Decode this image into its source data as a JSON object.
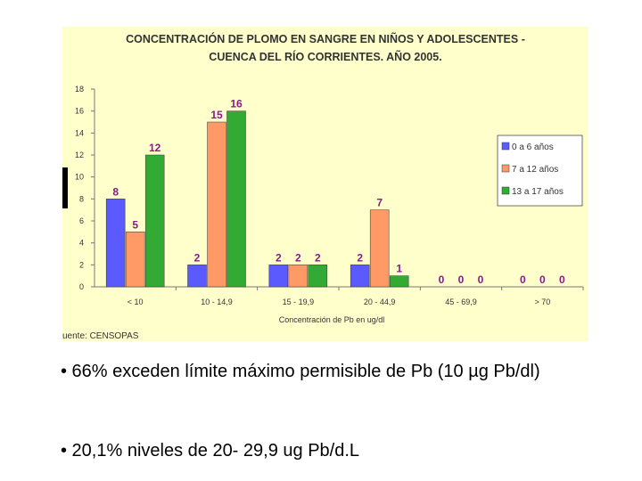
{
  "chart_data": {
    "type": "bar",
    "title_lines": [
      "CONCENTRACIÓN DE PLOMO EN SANGRE EN NIÑOS Y ADOLESCENTES -",
      "CUENCA DEL RÍO CORRIENTES. AÑO 2005."
    ],
    "xlabel": "Concentración de Pb en ug/dl",
    "ylabel": "",
    "categories": [
      "< 10",
      "10 - 14,9",
      "15 - 19,9",
      "20 - 44,9",
      "45 - 69,9",
      "> 70"
    ],
    "series": [
      {
        "name": "0 a 6 años",
        "values": [
          8,
          2,
          2,
          2,
          0,
          0
        ],
        "color": "#5a5aff"
      },
      {
        "name": "7 a 12 años",
        "values": [
          5,
          15,
          2,
          7,
          0,
          0
        ],
        "color": "#ff9966"
      },
      {
        "name": "13 a 17 años",
        "values": [
          12,
          16,
          2,
          1,
          0,
          0
        ],
        "color": "#33aa33"
      }
    ],
    "ylim": [
      0,
      18
    ],
    "yticks": [
      0,
      2,
      4,
      6,
      8,
      10,
      12,
      14,
      16,
      18
    ],
    "data_label_color": "#8a1a8a",
    "legend_position": "right",
    "source": "uente: CENSOPAS"
  },
  "bullets": [
    "• 66% exceden  límite máximo permisible de Pb (10 µg Pb/dl)",
    "• 20,1% niveles de 20- 29,9 ug Pb/d.L"
  ]
}
